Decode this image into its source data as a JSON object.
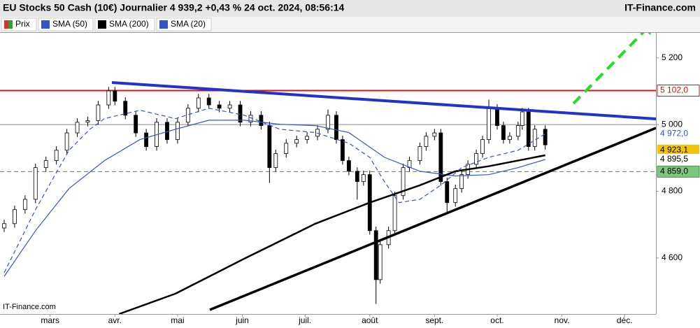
{
  "chart_data": {
    "type": "candlestick",
    "title": "EU Stocks 50 Cash (10€) Journalier 4 939,2 +0,43 % 24 oct. 2024, 08:56:14",
    "source": "IT-Finance.com",
    "watermark": "IT-Finance.com",
    "xlim": [
      37,
      351
    ],
    "xticks": [
      {
        "value": 61,
        "label": "mars"
      },
      {
        "value": 92,
        "label": "avr."
      },
      {
        "value": 122,
        "label": "mai"
      },
      {
        "value": 153,
        "label": "juin"
      },
      {
        "value": 183,
        "label": "juil."
      },
      {
        "value": 214,
        "label": "août"
      },
      {
        "value": 245,
        "label": "sept."
      },
      {
        "value": 275,
        "label": "oct."
      },
      {
        "value": 306,
        "label": "nov."
      },
      {
        "value": 336,
        "label": "déc."
      }
    ],
    "ylim": [
      4432,
      5275
    ],
    "yticks": [
      {
        "value": 5200,
        "label": "5 200"
      },
      {
        "value": 5000,
        "label": "5 000"
      },
      {
        "value": 4800,
        "label": "4 800"
      },
      {
        "value": 4600,
        "label": "4 600"
      }
    ],
    "series": [
      {
        "name": "Prix",
        "kind": "candle",
        "up_color": "#ffffff",
        "down_color": "#000000",
        "x": [
          39,
          44,
          49,
          54,
          59,
          64,
          69,
          74,
          79,
          84,
          89,
          92,
          97,
          102,
          107,
          112,
          117,
          122,
          127,
          132,
          137,
          142,
          147,
          152,
          157,
          162,
          166,
          169,
          174,
          179,
          184,
          189,
          194,
          198,
          201,
          204,
          208,
          211,
          214,
          217,
          219,
          223,
          226,
          230,
          233,
          238,
          241,
          245,
          248,
          251,
          255,
          258,
          261,
          265,
          268,
          271,
          275,
          278,
          281,
          285,
          287,
          290,
          293,
          298
        ],
        "open": [
          4690,
          4703,
          4745,
          4776,
          4871,
          4892,
          4923,
          4975,
          5007,
          5012,
          5059,
          5101,
          5070,
          5028,
          4975,
          4934,
          5007,
          4955,
          5007,
          5049,
          5080,
          5059,
          5049,
          5059,
          5007,
          5028,
          4997,
          4871,
          4913,
          4944,
          4955,
          4965,
          4986,
          5028,
          4955,
          4892,
          4860,
          4829,
          4850,
          4682,
          4535,
          4640,
          4682,
          4787,
          4871,
          4892,
          4934,
          4965,
          4975,
          4829,
          4766,
          4808,
          4850,
          4881,
          4913,
          4955,
          5049,
          4997,
          4955,
          4965,
          4997,
          5038,
          4934,
          4986
        ],
        "high": [
          4715,
          4757,
          4788,
          4883,
          4904,
          4935,
          4987,
          5019,
          5024,
          5071,
          5113,
          5113,
          5082,
          5040,
          4987,
          5019,
          5019,
          5019,
          5061,
          5092,
          5092,
          5071,
          5071,
          5071,
          5040,
          5040,
          5009,
          4925,
          4956,
          4967,
          4977,
          4998,
          5045,
          5040,
          4967,
          4904,
          4872,
          4862,
          4862,
          4694,
          4652,
          4694,
          4799,
          4883,
          4904,
          4946,
          4977,
          4987,
          4987,
          4841,
          4820,
          4862,
          4893,
          4925,
          4967,
          5075,
          5061,
          5009,
          4977,
          5009,
          5050,
          5050,
          4998,
          4998
        ],
        "low": [
          4678,
          4691,
          4733,
          4764,
          4859,
          4880,
          4911,
          4963,
          4995,
          5000,
          5047,
          5058,
          5016,
          4963,
          4922,
          4922,
          4943,
          4943,
          4995,
          5037,
          5047,
          5037,
          5037,
          4995,
          4995,
          4985,
          4825,
          4859,
          4901,
          4932,
          4943,
          4953,
          4974,
          4943,
          4880,
          4848,
          4775,
          4817,
          4670,
          4462,
          4523,
          4628,
          4670,
          4775,
          4859,
          4880,
          4922,
          4953,
          4817,
          4735,
          4754,
          4796,
          4838,
          4869,
          4901,
          4943,
          4985,
          4943,
          4943,
          4953,
          4985,
          4922,
          4922,
          4925
        ],
        "close": [
          4703,
          4745,
          4776,
          4871,
          4892,
          4923,
          4975,
          5007,
          5012,
          5059,
          5101,
          5070,
          5028,
          4975,
          4934,
          5007,
          4955,
          5007,
          5049,
          5080,
          5059,
          5049,
          5059,
          5007,
          5028,
          4997,
          4871,
          4913,
          4944,
          4955,
          4965,
          4986,
          5028,
          4955,
          4892,
          4860,
          4829,
          4850,
          4682,
          4535,
          4640,
          4682,
          4787,
          4871,
          4892,
          4934,
          4965,
          4975,
          4829,
          4766,
          4808,
          4850,
          4881,
          4913,
          4955,
          5049,
          4997,
          4955,
          4965,
          4997,
          5038,
          4934,
          4986,
          4939.2
        ]
      },
      {
        "name": "SMA (50)",
        "kind": "line",
        "color": "#3355cc",
        "width": 1.2,
        "x": [
          39,
          54,
          70,
          87,
          104,
          121,
          137,
          154,
          171,
          188,
          204,
          221,
          238,
          255,
          271,
          285,
          298
        ],
        "values": [
          4545,
          4682,
          4808,
          4892,
          4955,
          4986,
          5013,
          5013,
          5001,
          4997,
          4976,
          4902,
          4860,
          4846,
          4850,
          4871,
          4895.5
        ]
      },
      {
        "name": "SMA (200)",
        "kind": "line",
        "color": "#000000",
        "width": 2.5,
        "x": [
          94,
          121,
          154,
          188,
          214,
          238,
          255,
          271,
          298
        ],
        "values": [
          4432,
          4493,
          4598,
          4703,
          4766,
          4818,
          4860,
          4875,
          4908
        ]
      },
      {
        "name": "SMA (20)",
        "kind": "line",
        "color": "#3355cc",
        "width": 1.2,
        "dash": "6 4",
        "x": [
          39,
          54,
          70,
          80,
          87,
          104,
          121,
          137,
          154,
          171,
          188,
          204,
          214,
          221,
          228,
          238,
          248,
          258,
          271,
          285,
          298
        ],
        "values": [
          4556,
          4745,
          4923,
          4986,
          5018,
          5043,
          5018,
          5049,
          5028,
          4986,
          4976,
          4944,
          4902,
          4829,
          4766,
          4776,
          4818,
          4871,
          4902,
          4923,
          4972
        ]
      }
    ],
    "levels": [
      {
        "value": 5000,
        "color": "#888888",
        "style": "solid"
      },
      {
        "value": 5102,
        "label": "5 102,0",
        "color": "#e01010",
        "style": "solid",
        "box": "#ffffff"
      },
      {
        "value": 4972,
        "label": "4 972,0",
        "color": "#3355cc",
        "box": "#ffffff"
      },
      {
        "value": 4923.1,
        "label": "4 923,1",
        "color": "#000000",
        "box": "#f5c400"
      },
      {
        "value": 4895.5,
        "label": "4 895,5",
        "color": "#000000",
        "box": "#ffffff"
      },
      {
        "value": 4859,
        "label": "4 859,0",
        "color": "#3a9a3a",
        "style": "dashed",
        "box": "#7ec87e"
      }
    ]
  }
}
